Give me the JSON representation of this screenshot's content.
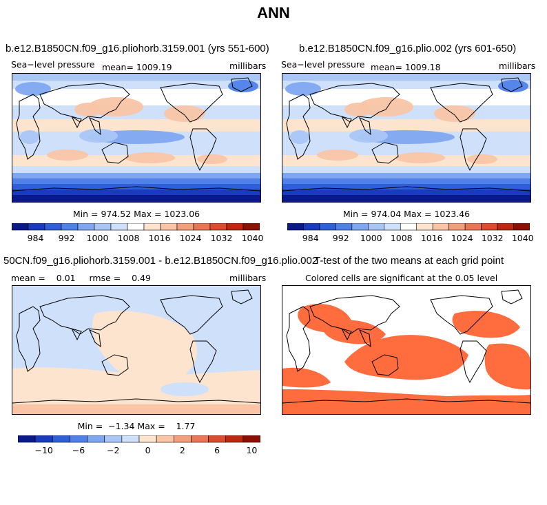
{
  "page_title": "ANN",
  "colors": {
    "scale": [
      "#0a1a8a",
      "#1a3bbd",
      "#2f5fd8",
      "#4f81e8",
      "#7fa6f0",
      "#aac6f5",
      "#cfe0fb",
      "#ffffff",
      "#fde4cf",
      "#f9c5a6",
      "#f39f7c",
      "#ea7656",
      "#db4b2e",
      "#be2810",
      "#8b0f03"
    ],
    "significant": "#ff6c3d",
    "land_outline": "#000000"
  },
  "chart_data": [
    {
      "type": "heatmap",
      "title": "b.e12.B1850CN.f09_g16.pliohorb.3159.001 (yrs 551-600)",
      "variable": "Sea−level pressure",
      "stat_text": "mean=  1009.19",
      "units": "millibars",
      "min": 974.52,
      "max": 1023.06,
      "minmax_text": "Min = 974.52 Max = 1023.06",
      "colorbar_ticks": [
        "984",
        "992",
        "1000",
        "1008",
        "1016",
        "1024",
        "1032",
        "1040"
      ],
      "colorbar_levels": 15
    },
    {
      "type": "heatmap",
      "title": "b.e12.B1850CN.f09_g16.plio.002 (yrs 601-650)",
      "variable": "Sea−level pressure",
      "stat_text": "mean=  1009.18",
      "units": "millibars",
      "min": 974.04,
      "max": 1023.46,
      "minmax_text": "Min = 974.04 Max = 1023.46",
      "colorbar_ticks": [
        "984",
        "992",
        "1000",
        "1008",
        "1016",
        "1024",
        "1032",
        "1040"
      ],
      "colorbar_levels": 15
    },
    {
      "type": "heatmap",
      "title": "50CN.f09_g16.pliohorb.3159.001 - b.e12.B1850CN.f09_g16.plio.002",
      "stat_text": "mean =    0.01     rmse =    0.49",
      "units": "millibars",
      "min": -1.34,
      "max": 1.77,
      "minmax_text": "Min =  −1.34 Max =    1.77",
      "colorbar_ticks": [
        "−10",
        "−6",
        "−2",
        "0",
        "2",
        "6",
        "10"
      ],
      "colorbar_levels": 14
    },
    {
      "type": "heatmap",
      "title": "T-test of the two means at each grid point",
      "subtitle": "Colored cells are significant at the 0.05 level"
    }
  ]
}
